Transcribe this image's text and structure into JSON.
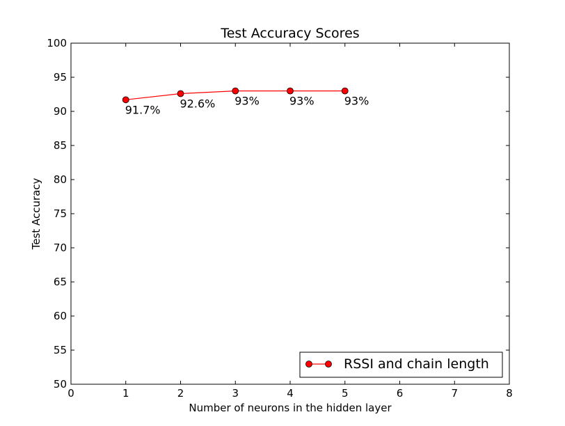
{
  "chart_data": {
    "type": "line",
    "title": "Test Accuracy Scores",
    "xlabel": "Number of neurons in the hidden layer",
    "ylabel": "Test Accuracy",
    "xlim": [
      0,
      8
    ],
    "ylim": [
      50,
      100
    ],
    "xticks": [
      0,
      1,
      2,
      3,
      4,
      5,
      6,
      7,
      8
    ],
    "yticks": [
      50,
      55,
      60,
      65,
      70,
      75,
      80,
      85,
      90,
      95,
      100
    ],
    "grid": false,
    "legend_position": "lower-right",
    "series": [
      {
        "name": "RSSI and chain length",
        "color": "#ff0000",
        "marker": "circle",
        "x": [
          1,
          2,
          3,
          4,
          5
        ],
        "y": [
          91.7,
          92.6,
          93.0,
          93.0,
          93.0
        ],
        "labels": [
          "91.7%",
          "92.6%",
          "93%",
          "93%",
          "93%"
        ]
      }
    ]
  }
}
